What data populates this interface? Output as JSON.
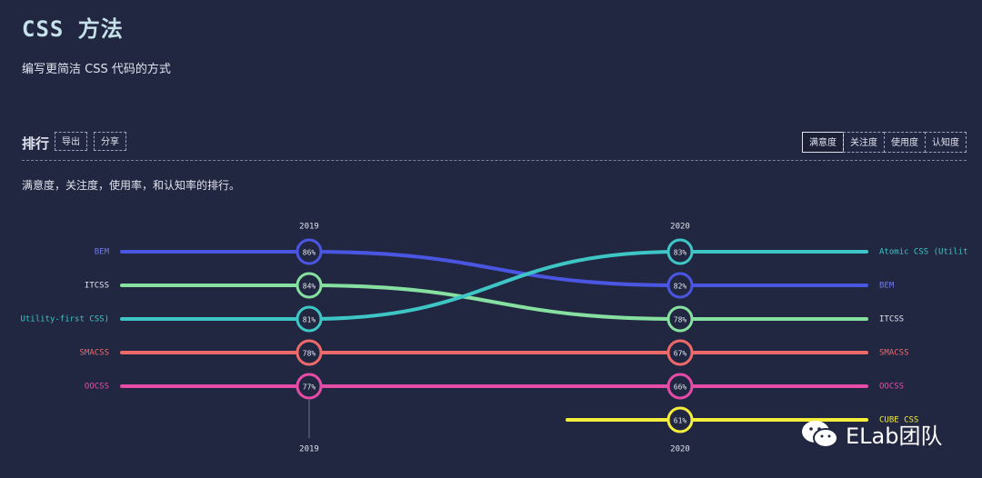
{
  "page": {
    "title": "CSS 方法",
    "subtitle": "编写更简洁 CSS 代码的方式"
  },
  "section": {
    "title": "排行",
    "export_label": "导出",
    "share_label": "分享",
    "description": "满意度，关注度，使用率，和认知率的排行。"
  },
  "tabs": [
    {
      "label": "满意度",
      "active": true
    },
    {
      "label": "关注度",
      "active": false
    },
    {
      "label": "使用度",
      "active": false
    },
    {
      "label": "认知度",
      "active": false
    }
  ],
  "watermark": {
    "text": "ELab团队"
  },
  "chart_data": {
    "type": "line",
    "x": [
      "2019",
      "2020"
    ],
    "grid": false,
    "series": [
      {
        "name": "BEM",
        "color": "#4a56e2",
        "ranks": [
          1,
          2
        ],
        "values": [
          "86%",
          "82%"
        ]
      },
      {
        "name": "ITCSS",
        "color": "#86e0a0",
        "ranks": [
          2,
          3
        ],
        "values": [
          "84%",
          "78%"
        ]
      },
      {
        "name": "Utility-first CSS)",
        "end_label": "Atomic CSS (Utilit",
        "color": "#3ec6c6",
        "ranks": [
          3,
          1
        ],
        "values": [
          "81%",
          "83%"
        ]
      },
      {
        "name": "SMACSS",
        "color": "#ee6a6a",
        "ranks": [
          4,
          4
        ],
        "values": [
          "78%",
          "67%"
        ]
      },
      {
        "name": "OOCSS",
        "color": "#e54ca8",
        "ranks": [
          5,
          5
        ],
        "values": [
          "77%",
          "66%"
        ]
      },
      {
        "name": "CUBE CSS",
        "color": "#f5ee3d",
        "ranks": [
          null,
          6
        ],
        "values": [
          null,
          "61%"
        ]
      }
    ]
  }
}
